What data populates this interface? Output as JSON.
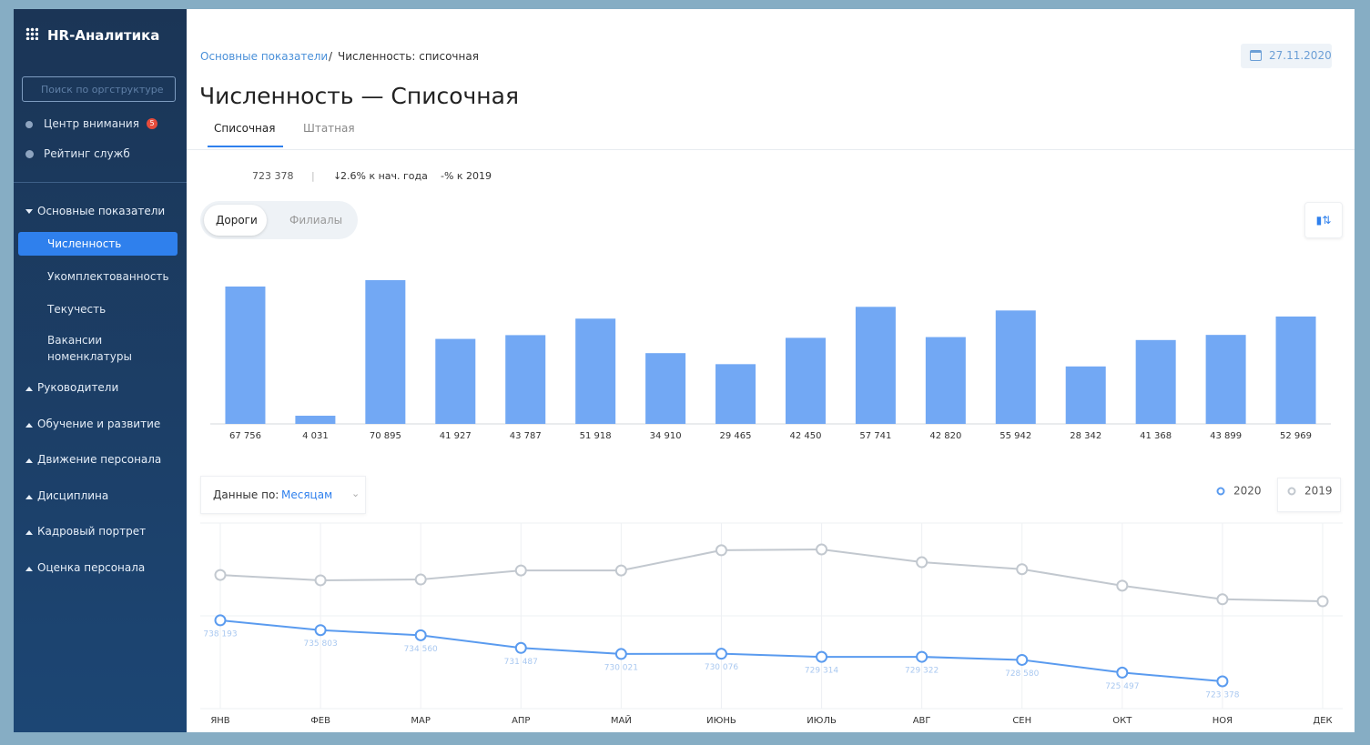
{
  "sidebar": {
    "title": "HR-Аналитика",
    "search_placeholder": "Поиск по оргструктуре",
    "items": [
      {
        "label": "Центр внимания",
        "badge": "5"
      },
      {
        "label": "Рейтинг служб"
      }
    ],
    "menu": [
      {
        "label": "Основные показатели",
        "children": [
          "Численность",
          "Укомплектованность",
          "Текучесть",
          "Вакансии номенклатуры"
        ]
      },
      {
        "label": "Руководители"
      },
      {
        "label": "Обучение и развитие"
      },
      {
        "label": "Движение персонала"
      },
      {
        "label": "Дисциплина"
      },
      {
        "label": "Кадровый портрет"
      },
      {
        "label": "Оценка персонала"
      }
    ]
  },
  "header": {
    "breadcrumb": [
      "Основные показатели",
      "Численность: списочная"
    ],
    "date": "27.11.2020",
    "title": "Численность — Списочная",
    "tabs": [
      "Списочная",
      "Штатная"
    ]
  },
  "stats": [
    "723 378",
    "2.6% к нач. года",
    "-% к 2019"
  ],
  "toggle": [
    "Дороги",
    "Филиалы"
  ],
  "filter": {
    "label": "Данные по:",
    "value": "Месяцам"
  },
  "chart_data": [
    {
      "type": "bar",
      "categories": [
        null,
        null,
        null,
        null,
        null,
        null,
        null,
        null,
        null,
        null,
        null,
        null,
        null,
        null,
        null,
        null
      ],
      "values": [
        67756,
        4031,
        70895,
        41927,
        43787,
        51918,
        34910,
        29465,
        42450,
        57741,
        42820,
        55942,
        28342,
        41368,
        43899,
        52969
      ],
      "value_labels": [
        "67 756",
        "4 031",
        "70 895",
        "41 927",
        "43 787",
        "51 918",
        "34 910",
        "29 465",
        "42 450",
        "57 741",
        "42 820",
        "55 942",
        "28 342",
        "41 368",
        "43 899",
        "52 969"
      ],
      "color": "#72a8f4"
    },
    {
      "type": "line",
      "categories": [
        "ЯНВ",
        "ФЕВ",
        "МАР",
        "АПР",
        "МАЙ",
        "ИЮНЬ",
        "ИЮЛЬ",
        "АВГ",
        "СЕН",
        "ОКТ",
        "НОЯ",
        "ДЕК"
      ],
      "series": [
        {
          "name": "2020",
          "color": "#5a9bef",
          "values": [
            738193,
            735803,
            734560,
            731487,
            730021,
            730076,
            729314,
            729322,
            728580,
            725497,
            723378,
            null
          ],
          "value_labels": [
            "738 193",
            "735 803",
            "734 560",
            "731 487",
            "730 021",
            "730 076",
            "729 314",
            "729 322",
            "728 580",
            "725 497",
            "723 378",
            null
          ]
        },
        {
          "name": "2019",
          "color": "#c2c8cf",
          "values": [
            749200,
            747900,
            748100,
            750300,
            750300,
            755200,
            755400,
            752300,
            750600,
            746600,
            743300,
            742800
          ]
        }
      ]
    }
  ]
}
